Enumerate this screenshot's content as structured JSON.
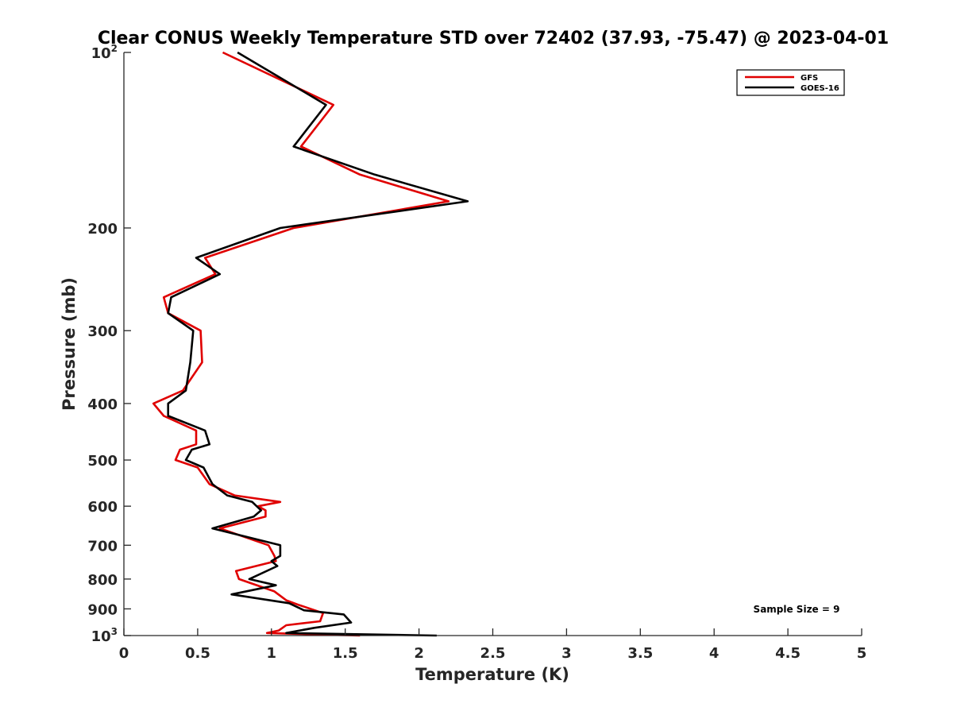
{
  "chart_data": {
    "type": "line",
    "title": "Clear CONUS Weekly Temperature STD over 72402 (37.93, -75.47) @ 2023-04-01",
    "xlabel": "Temperature (K)",
    "ylabel": "Pressure (mb)",
    "xlim": [
      0,
      5
    ],
    "ylim": [
      100,
      1000
    ],
    "y_scale": "log",
    "y_reversed": true,
    "x_ticks": [
      0,
      0.5,
      1,
      1.5,
      2,
      2.5,
      3,
      3.5,
      4,
      4.5,
      5
    ],
    "x_tick_labels": [
      "0",
      "0.5",
      "1",
      "1.5",
      "2",
      "2.5",
      "3",
      "3.5",
      "4",
      "4.5",
      "5"
    ],
    "y_ticks": [
      {
        "value": 100,
        "base": "10",
        "exp": "2"
      },
      {
        "value": 200,
        "label": "200"
      },
      {
        "value": 300,
        "label": "300"
      },
      {
        "value": 400,
        "label": "400"
      },
      {
        "value": 500,
        "label": "500"
      },
      {
        "value": 600,
        "label": "600"
      },
      {
        "value": 700,
        "label": "700"
      },
      {
        "value": 800,
        "label": "800"
      },
      {
        "value": 900,
        "label": "900"
      },
      {
        "value": 1000,
        "base": "10",
        "exp": "3"
      }
    ],
    "legend_position": "top-right",
    "annotation": "Sample Size = 9",
    "series": [
      {
        "name": "GFS",
        "color": "#e00000",
        "x": [
          0.67,
          1.42,
          1.2,
          1.6,
          2.2,
          1.15,
          0.55,
          0.62,
          0.27,
          0.3,
          0.52,
          0.53,
          0.4,
          0.2,
          0.27,
          0.49,
          0.49,
          0.38,
          0.35,
          0.5,
          0.58,
          0.75,
          1.06,
          0.91,
          0.96,
          0.96,
          0.65,
          0.98,
          1.02,
          1.03,
          0.76,
          0.78,
          1.02,
          1.1,
          1.18,
          1.35,
          1.33,
          1.1,
          1.05,
          0.97,
          1.6
        ],
        "y": [
          100,
          123,
          145,
          162,
          180,
          200,
          225,
          240,
          263,
          280,
          300,
          340,
          380,
          400,
          420,
          445,
          470,
          480,
          500,
          515,
          550,
          575,
          590,
          600,
          610,
          625,
          655,
          700,
          730,
          745,
          775,
          800,
          840,
          870,
          885,
          915,
          945,
          960,
          980,
          990,
          1000
        ]
      },
      {
        "name": "GOES-16",
        "color": "#000000",
        "x": [
          0.77,
          1.37,
          1.15,
          1.7,
          2.33,
          1.06,
          0.49,
          0.65,
          0.32,
          0.3,
          0.47,
          0.45,
          0.42,
          0.3,
          0.3,
          0.55,
          0.58,
          0.46,
          0.42,
          0.54,
          0.6,
          0.7,
          0.87,
          0.9,
          0.93,
          0.88,
          0.6,
          1.06,
          1.06,
          1.0,
          1.04,
          0.85,
          1.03,
          0.73,
          1.12,
          1.22,
          1.49,
          1.54,
          1.29,
          1.1,
          2.12
        ],
        "y": [
          100,
          123,
          145,
          162,
          180,
          200,
          225,
          240,
          263,
          280,
          300,
          340,
          380,
          400,
          420,
          445,
          470,
          480,
          500,
          515,
          550,
          575,
          590,
          600,
          610,
          625,
          655,
          700,
          730,
          745,
          760,
          800,
          820,
          850,
          880,
          905,
          920,
          950,
          970,
          990,
          1000
        ]
      }
    ]
  }
}
